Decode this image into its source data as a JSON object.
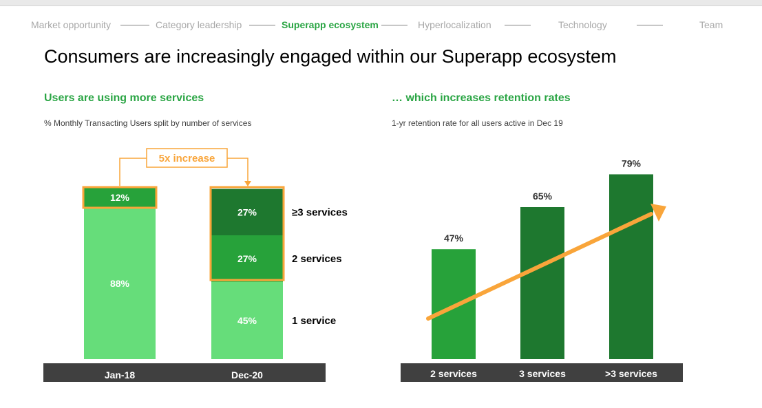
{
  "nav": {
    "items": [
      {
        "label": "Market opportunity",
        "active": false
      },
      {
        "label": "Category leadership",
        "active": false
      },
      {
        "label": "Superapp ecosystem",
        "active": true
      },
      {
        "label": "Hyperlocalization",
        "active": false
      },
      {
        "label": "Technology",
        "active": false
      },
      {
        "label": "Team",
        "active": false
      }
    ]
  },
  "page_title": "Consumers are increasingly engaged within our Superapp ecosystem",
  "left_section": {
    "heading": "Users are using more services",
    "subtitle": "% Monthly Transacting Users split by number of services"
  },
  "right_section": {
    "heading": "… which increases retention rates",
    "subtitle": "1-yr retention rate for all users active in Dec 19"
  },
  "colors": {
    "light_green": "#66dd7a",
    "mid_green": "#27a23a",
    "dark_green": "#1e782f",
    "orange": "#f9a53a",
    "axis_band": "#404040",
    "brand_green_text": "#2aa544"
  },
  "chart_data": [
    {
      "type": "bar",
      "stacked": true,
      "categories": [
        "Jan-18",
        "Dec-20"
      ],
      "series": [
        {
          "name": "1 service",
          "values": [
            88,
            45
          ]
        },
        {
          "name": "2 services",
          "values": [
            12,
            27
          ]
        },
        {
          "name": "≥3 services",
          "values": [
            0,
            27
          ]
        }
      ],
      "data_labels": [
        [
          "88%",
          "12%"
        ],
        [
          "45%",
          "27%",
          "27%"
        ]
      ],
      "annotation": "5x increase",
      "ylim": [
        0,
        100
      ]
    },
    {
      "type": "bar",
      "categories": [
        "2 services",
        "3 services",
        ">3 services"
      ],
      "values": [
        47,
        65,
        79
      ],
      "data_labels": [
        "47%",
        "65%",
        "79%"
      ],
      "trend_arrow": true,
      "ylim": [
        0,
        100
      ]
    }
  ]
}
